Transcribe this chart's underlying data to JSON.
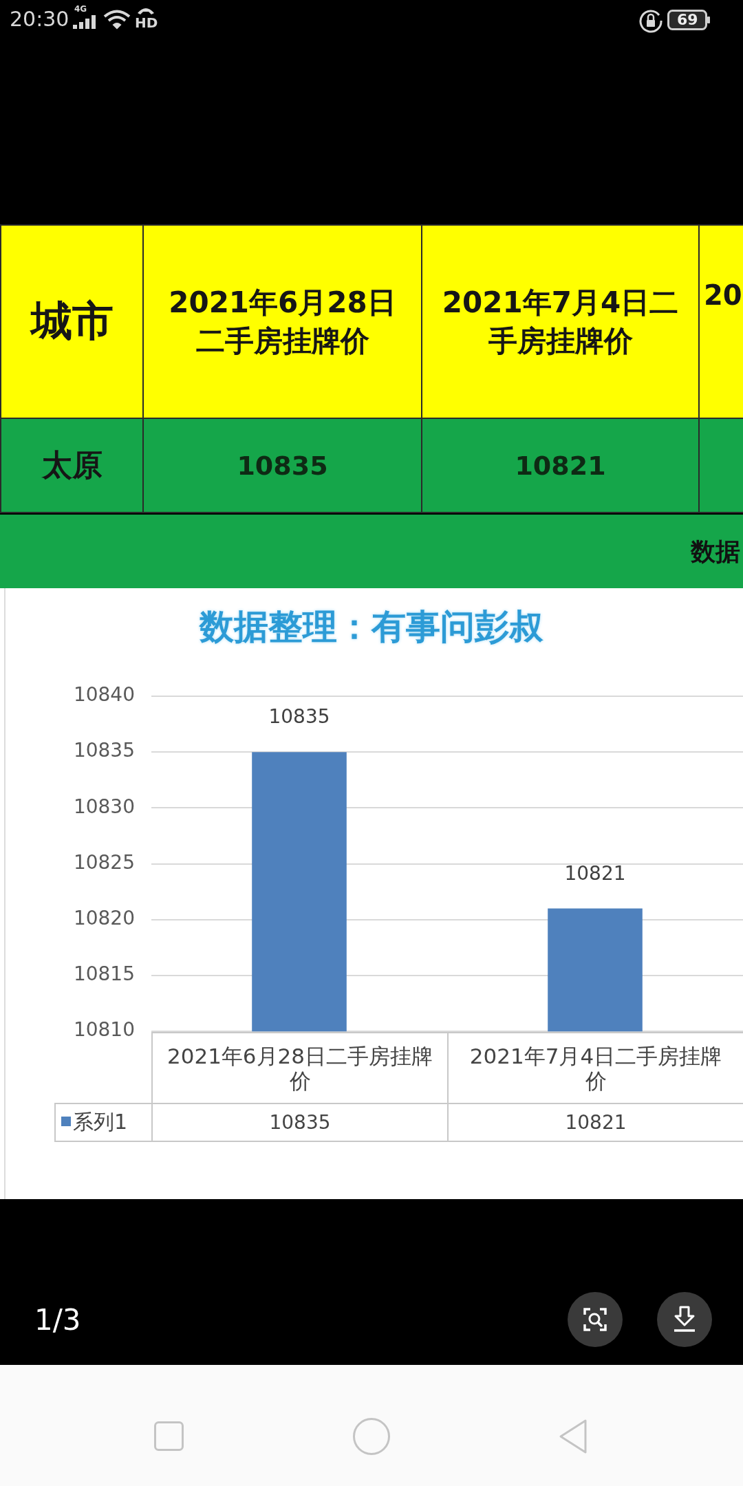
{
  "chart_data": [
    {
      "type": "other",
      "annotations": [
        "20:30",
        "4G",
        "HD",
        "69",
        "城市",
        "2021年6月28日二手房挂牌价",
        "2021年7月4日二手房挂牌价",
        "20",
        "太原",
        "10835",
        "10821",
        "数据",
        "1/3"
      ]
    },
    {
      "type": "bar",
      "title": "数据整理：有事问彭叔",
      "categories": [
        "2021年6月28日二手房挂牌价",
        "2021年7月4日二手房挂牌价"
      ],
      "series": [
        {
          "name": "系列1",
          "color": "#4f81bd",
          "values": [
            10835,
            10821
          ],
          "value_labels": [
            "10835",
            "10821"
          ]
        }
      ],
      "ylim": [
        10810,
        10840
      ],
      "yticks": [
        10810,
        10815,
        10820,
        10825,
        10830,
        10835,
        10840
      ],
      "grid": "y",
      "legend": "bottom",
      "data_labels": true
    }
  ]
}
